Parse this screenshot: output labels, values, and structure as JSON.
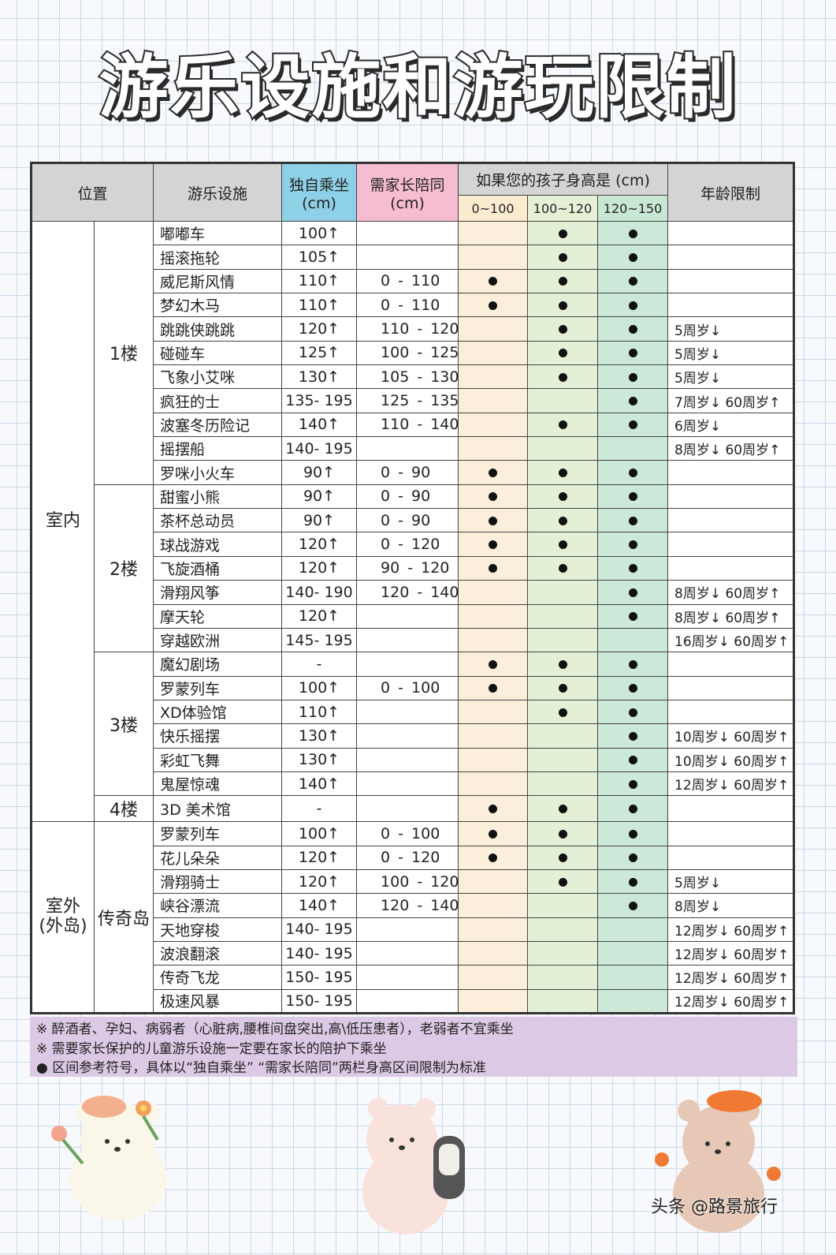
{
  "title": "游乐设施和游玩限制",
  "headers": {
    "location": "位置",
    "ride": "游乐设施",
    "solo": "独自乘坐",
    "solo_unit": "(cm)",
    "parent": "需家长陪同",
    "parent_unit": "(cm)",
    "height_group": "如果您的孩子身高是 (cm)",
    "h0": "0~100",
    "h1": "100~120",
    "h2": "120~150",
    "age": "年龄限制"
  },
  "colors": {
    "solo": "#8ed0e6",
    "parent": "#f6bcd2",
    "h0": "#fbefdc",
    "h1": "#e4f0d6",
    "h2": "#cce8d8",
    "notes": "#dcc9e5"
  },
  "groups": [
    {
      "area": "室内",
      "floors": [
        {
          "floor": "1楼",
          "rows": [
            {
              "name": "嘟嘟车",
              "solo": "100↑",
              "parent": "",
              "dots": [
                0,
                1,
                1
              ],
              "age": ""
            },
            {
              "name": "摇滚拖轮",
              "solo": "105↑",
              "parent": "",
              "dots": [
                0,
                1,
                1
              ],
              "age": ""
            },
            {
              "name": "威尼斯风情",
              "solo": "110↑",
              "parent": "0 - 110",
              "dots": [
                1,
                1,
                1
              ],
              "age": ""
            },
            {
              "name": "梦幻木马",
              "solo": "110↑",
              "parent": "0 - 110",
              "dots": [
                1,
                1,
                1
              ],
              "age": ""
            },
            {
              "name": "跳跳侠跳跳",
              "solo": "120↑",
              "parent": "110 - 120",
              "dots": [
                0,
                1,
                1
              ],
              "age": "5周岁↓"
            },
            {
              "name": "碰碰车",
              "solo": "125↑",
              "parent": "100 - 125",
              "dots": [
                0,
                1,
                1
              ],
              "age": "5周岁↓"
            },
            {
              "name": "飞象小艾咪",
              "solo": "130↑",
              "parent": "105 - 130",
              "dots": [
                0,
                1,
                1
              ],
              "age": "5周岁↓"
            },
            {
              "name": "疯狂的士",
              "solo": "135- 195",
              "parent": "125 - 135",
              "dots": [
                0,
                0,
                1
              ],
              "age": "7周岁↓ 60周岁↑"
            },
            {
              "name": "波塞冬历险记",
              "solo": "140↑",
              "parent": "110 - 140",
              "dots": [
                0,
                1,
                1
              ],
              "age": "6周岁↓"
            },
            {
              "name": "摇摆船",
              "solo": "140- 195",
              "parent": "",
              "dots": [
                0,
                0,
                0
              ],
              "age": "8周岁↓ 60周岁↑"
            },
            {
              "name": "罗咪小火车",
              "solo": "90↑",
              "parent": "0 - 90",
              "dots": [
                1,
                1,
                1
              ],
              "age": ""
            }
          ]
        },
        {
          "floor": "2楼",
          "rows": [
            {
              "name": "甜蜜小熊",
              "solo": "90↑",
              "parent": "0 - 90",
              "dots": [
                1,
                1,
                1
              ],
              "age": ""
            },
            {
              "name": "茶杯总动员",
              "solo": "90↑",
              "parent": "0 - 90",
              "dots": [
                1,
                1,
                1
              ],
              "age": ""
            },
            {
              "name": "球战游戏",
              "solo": "120↑",
              "parent": "0 - 120",
              "dots": [
                1,
                1,
                1
              ],
              "age": ""
            },
            {
              "name": "飞旋酒桶",
              "solo": "120↑",
              "parent": "90 - 120",
              "dots": [
                1,
                1,
                1
              ],
              "age": ""
            },
            {
              "name": "滑翔风筝",
              "solo": "140- 190",
              "parent": "120 - 140",
              "dots": [
                0,
                0,
                1
              ],
              "age": "8周岁↓ 60周岁↑"
            },
            {
              "name": "摩天轮",
              "solo": "120↑",
              "parent": "",
              "dots": [
                0,
                0,
                1
              ],
              "age": "8周岁↓ 60周岁↑"
            },
            {
              "name": "穿越欧洲",
              "solo": "145- 195",
              "parent": "",
              "dots": [
                0,
                0,
                0
              ],
              "age": "16周岁↓ 60周岁↑"
            }
          ]
        },
        {
          "floor": "3楼",
          "rows": [
            {
              "name": "魔幻剧场",
              "solo": "-",
              "parent": "",
              "dots": [
                1,
                1,
                1
              ],
              "age": ""
            },
            {
              "name": "罗蒙列车",
              "solo": "100↑",
              "parent": "0 - 100",
              "dots": [
                1,
                1,
                1
              ],
              "age": ""
            },
            {
              "name": "XD体验馆",
              "solo": "110↑",
              "parent": "",
              "dots": [
                0,
                1,
                1
              ],
              "age": ""
            },
            {
              "name": "快乐摇摆",
              "solo": "130↑",
              "parent": "",
              "dots": [
                0,
                0,
                1
              ],
              "age": "10周岁↓ 60周岁↑"
            },
            {
              "name": "彩虹飞舞",
              "solo": "130↑",
              "parent": "",
              "dots": [
                0,
                0,
                1
              ],
              "age": "10周岁↓ 60周岁↑"
            },
            {
              "name": "鬼屋惊魂",
              "solo": "140↑",
              "parent": "",
              "dots": [
                0,
                0,
                1
              ],
              "age": "12周岁↓ 60周岁↑"
            }
          ]
        },
        {
          "floor": "4楼",
          "rows": [
            {
              "name": "3D 美术馆",
              "solo": "-",
              "parent": "",
              "dots": [
                1,
                1,
                1
              ],
              "age": ""
            }
          ]
        }
      ]
    },
    {
      "area": "室外\n(外岛)",
      "floors": [
        {
          "floor": "传奇岛",
          "rows": [
            {
              "name": "罗蒙列车",
              "solo": "100↑",
              "parent": "0 - 100",
              "dots": [
                1,
                1,
                1
              ],
              "age": ""
            },
            {
              "name": "花儿朵朵",
              "solo": "120↑",
              "parent": "0 - 120",
              "dots": [
                1,
                1,
                1
              ],
              "age": ""
            },
            {
              "name": "滑翔骑士",
              "solo": "120↑",
              "parent": "100 - 120",
              "dots": [
                0,
                1,
                1
              ],
              "age": "5周岁↓"
            },
            {
              "name": "峡谷漂流",
              "solo": "140↑",
              "parent": "120 - 140",
              "dots": [
                0,
                0,
                1
              ],
              "age": "8周岁↓"
            },
            {
              "name": "天地穿梭",
              "solo": "140- 195",
              "parent": "",
              "dots": [
                0,
                0,
                0
              ],
              "age": "12周岁↓ 60周岁↑"
            },
            {
              "name": "波浪翻滚",
              "solo": "140- 195",
              "parent": "",
              "dots": [
                0,
                0,
                0
              ],
              "age": "12周岁↓ 60周岁↑"
            },
            {
              "name": "传奇飞龙",
              "solo": "150- 195",
              "parent": "",
              "dots": [
                0,
                0,
                0
              ],
              "age": "12周岁↓ 60周岁↑"
            },
            {
              "name": "极速风暴",
              "solo": "150- 195",
              "parent": "",
              "dots": [
                0,
                0,
                0
              ],
              "age": "12周岁↓ 60周岁↑"
            }
          ]
        }
      ]
    }
  ],
  "notes": [
    "※ 醉酒者、孕妇、病弱者（心脏病,腰椎间盘突出,高\\低压患者），老弱者不宜乘坐",
    "※ 需要家长保护的儿童游乐设施一定要在家长的陪护下乘坐",
    "● 区间参考符号，具体以“独自乘坐” “需家长陪同”两栏身高区间限制为标准"
  ],
  "watermark": "头条 @路景旅行"
}
